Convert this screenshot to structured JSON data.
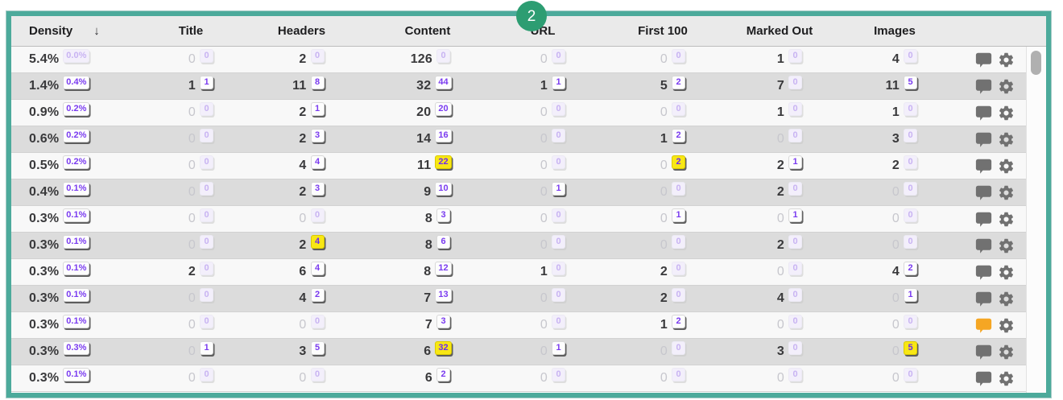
{
  "step_marker": {
    "label": "2"
  },
  "table": {
    "sort_icon": "↓",
    "columns": [
      {
        "key": "density",
        "label": "Density"
      },
      {
        "key": "title",
        "label": "Title"
      },
      {
        "key": "headers",
        "label": "Headers"
      },
      {
        "key": "content",
        "label": "Content"
      },
      {
        "key": "url",
        "label": "URL"
      },
      {
        "key": "first100",
        "label": "First 100"
      },
      {
        "key": "marked_out",
        "label": "Marked Out"
      },
      {
        "key": "images",
        "label": "Images"
      }
    ],
    "rows": [
      {
        "density": [
          "5.4%",
          "0.0%"
        ],
        "title": [
          "0",
          "0"
        ],
        "headers": [
          "2",
          "0"
        ],
        "content": [
          "126",
          "0"
        ],
        "url": [
          "0",
          "0"
        ],
        "first100": [
          "0",
          "0"
        ],
        "marked_out": [
          "1",
          "0"
        ],
        "images": [
          "4",
          "0"
        ],
        "comment": "gray",
        "hl": []
      },
      {
        "density": [
          "1.4%",
          "0.4%"
        ],
        "title": [
          "1",
          "1"
        ],
        "headers": [
          "11",
          "8"
        ],
        "content": [
          "32",
          "44"
        ],
        "url": [
          "1",
          "1"
        ],
        "first100": [
          "5",
          "2"
        ],
        "marked_out": [
          "7",
          "0"
        ],
        "images": [
          "11",
          "5"
        ],
        "comment": "gray",
        "hl": []
      },
      {
        "density": [
          "0.9%",
          "0.2%"
        ],
        "title": [
          "0",
          "0"
        ],
        "headers": [
          "2",
          "1"
        ],
        "content": [
          "20",
          "20"
        ],
        "url": [
          "0",
          "0"
        ],
        "first100": [
          "0",
          "0"
        ],
        "marked_out": [
          "1",
          "0"
        ],
        "images": [
          "1",
          "0"
        ],
        "comment": "gray",
        "hl": []
      },
      {
        "density": [
          "0.6%",
          "0.2%"
        ],
        "title": [
          "0",
          "0"
        ],
        "headers": [
          "2",
          "3"
        ],
        "content": [
          "14",
          "16"
        ],
        "url": [
          "0",
          "0"
        ],
        "first100": [
          "1",
          "2"
        ],
        "marked_out": [
          "0",
          "0"
        ],
        "images": [
          "3",
          "0"
        ],
        "comment": "gray",
        "hl": []
      },
      {
        "density": [
          "0.5%",
          "0.2%"
        ],
        "title": [
          "0",
          "0"
        ],
        "headers": [
          "4",
          "4"
        ],
        "content": [
          "11",
          "22"
        ],
        "url": [
          "0",
          "0"
        ],
        "first100": [
          "0",
          "2"
        ],
        "marked_out": [
          "2",
          "1"
        ],
        "images": [
          "2",
          "0"
        ],
        "comment": "gray",
        "hl": [
          "content",
          "first100"
        ]
      },
      {
        "density": [
          "0.4%",
          "0.1%"
        ],
        "title": [
          "0",
          "0"
        ],
        "headers": [
          "2",
          "3"
        ],
        "content": [
          "9",
          "10"
        ],
        "url": [
          "0",
          "1"
        ],
        "first100": [
          "0",
          "0"
        ],
        "marked_out": [
          "2",
          "0"
        ],
        "images": [
          "0",
          "0"
        ],
        "comment": "gray",
        "hl": []
      },
      {
        "density": [
          "0.3%",
          "0.1%"
        ],
        "title": [
          "0",
          "0"
        ],
        "headers": [
          "0",
          "0"
        ],
        "content": [
          "8",
          "3"
        ],
        "url": [
          "0",
          "0"
        ],
        "first100": [
          "0",
          "1"
        ],
        "marked_out": [
          "0",
          "1"
        ],
        "images": [
          "0",
          "0"
        ],
        "comment": "gray",
        "hl": []
      },
      {
        "density": [
          "0.3%",
          "0.1%"
        ],
        "title": [
          "0",
          "0"
        ],
        "headers": [
          "2",
          "4"
        ],
        "content": [
          "8",
          "6"
        ],
        "url": [
          "0",
          "0"
        ],
        "first100": [
          "0",
          "0"
        ],
        "marked_out": [
          "2",
          "0"
        ],
        "images": [
          "0",
          "0"
        ],
        "comment": "gray",
        "hl": [
          "headers"
        ]
      },
      {
        "density": [
          "0.3%",
          "0.1%"
        ],
        "title": [
          "2",
          "0"
        ],
        "headers": [
          "6",
          "4"
        ],
        "content": [
          "8",
          "12"
        ],
        "url": [
          "1",
          "0"
        ],
        "first100": [
          "2",
          "0"
        ],
        "marked_out": [
          "0",
          "0"
        ],
        "images": [
          "4",
          "2"
        ],
        "comment": "gray",
        "hl": []
      },
      {
        "density": [
          "0.3%",
          "0.1%"
        ],
        "title": [
          "0",
          "0"
        ],
        "headers": [
          "4",
          "2"
        ],
        "content": [
          "7",
          "13"
        ],
        "url": [
          "0",
          "0"
        ],
        "first100": [
          "2",
          "0"
        ],
        "marked_out": [
          "4",
          "0"
        ],
        "images": [
          "0",
          "1"
        ],
        "comment": "gray",
        "hl": []
      },
      {
        "density": [
          "0.3%",
          "0.1%"
        ],
        "title": [
          "0",
          "0"
        ],
        "headers": [
          "0",
          "0"
        ],
        "content": [
          "7",
          "3"
        ],
        "url": [
          "0",
          "0"
        ],
        "first100": [
          "1",
          "2"
        ],
        "marked_out": [
          "0",
          "0"
        ],
        "images": [
          "0",
          "0"
        ],
        "comment": "orange",
        "hl": []
      },
      {
        "density": [
          "0.3%",
          "0.3%"
        ],
        "title": [
          "0",
          "1"
        ],
        "headers": [
          "3",
          "5"
        ],
        "content": [
          "6",
          "32"
        ],
        "url": [
          "0",
          "1"
        ],
        "first100": [
          "0",
          "0"
        ],
        "marked_out": [
          "3",
          "0"
        ],
        "images": [
          "0",
          "5"
        ],
        "comment": "gray",
        "hl": [
          "content",
          "images"
        ]
      },
      {
        "density": [
          "0.3%",
          "0.1%"
        ],
        "title": [
          "0",
          "0"
        ],
        "headers": [
          "0",
          "0"
        ],
        "content": [
          "6",
          "2"
        ],
        "url": [
          "0",
          "0"
        ],
        "first100": [
          "0",
          "0"
        ],
        "marked_out": [
          "0",
          "0"
        ],
        "images": [
          "0",
          "0"
        ],
        "comment": "gray",
        "hl": []
      }
    ]
  },
  "colors": {
    "frame_teal": "#4caa9b",
    "step_circle_green": "#2d9d72",
    "badge_purple": "#7a3bf0",
    "badge_highlight_yellow": "#f8e714",
    "badge_faded_lavender": "#c8b3f2",
    "comment_orange": "#f5a623",
    "icon_gray": "#717171",
    "row_even_gray": "#dcdcdc",
    "row_odd": "#f8f8f8"
  }
}
